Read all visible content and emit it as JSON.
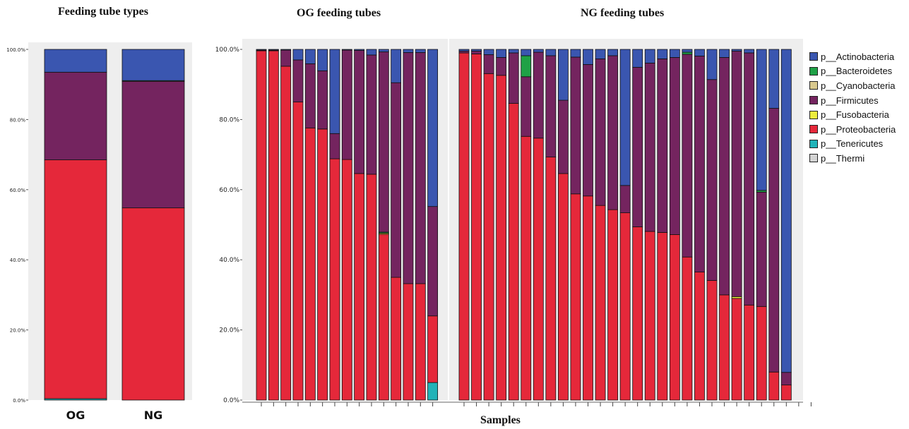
{
  "chart_data": [
    {
      "type": "bar",
      "stacked": true,
      "title": "Feeding tube types",
      "categories": [
        "OG",
        "NG"
      ],
      "ylim": [
        0,
        100
      ],
      "ytick_labels": [
        "0.0%",
        "20.0%",
        "40.0%",
        "60.0%",
        "80.0%",
        "100.0%"
      ],
      "series": [
        {
          "name": "p__Tenericutes",
          "values": [
            0.4,
            0
          ]
        },
        {
          "name": "p__Proteobacteria",
          "values": [
            68.1,
            54.8
          ]
        },
        {
          "name": "p__Firmicutes",
          "values": [
            25.0,
            36.1
          ]
        },
        {
          "name": "p__Bacteroidetes",
          "values": [
            0,
            0.2
          ]
        },
        {
          "name": "p__Actinobacteria",
          "values": [
            6.5,
            8.9
          ]
        }
      ]
    },
    {
      "type": "bar",
      "stacked": true,
      "title": "OG feeding tubes",
      "sample_count": 15,
      "ylim": [
        0,
        100
      ],
      "ytick_labels": [
        "0.0%",
        "20.0%",
        "40.0%",
        "60.0%",
        "80.0%",
        "100.0%"
      ],
      "series": [
        {
          "name": "p__Tenericutes",
          "values": [
            0,
            0,
            0,
            0,
            0,
            0,
            0,
            0,
            0,
            0,
            0,
            0,
            0,
            0,
            5
          ]
        },
        {
          "name": "p__Proteobacteria",
          "values": [
            99.6,
            99.6,
            95.2,
            85.0,
            77.6,
            77.3,
            68.8,
            68.6,
            64.6,
            64.4,
            47.3,
            35.0,
            33.2,
            33.2,
            19.0
          ]
        },
        {
          "name": "p__Fusobacteria",
          "values": [
            0,
            0,
            0,
            0,
            0,
            0,
            0,
            0,
            0,
            0,
            0.3,
            0,
            0,
            0,
            0
          ]
        },
        {
          "name": "p__Bacteroidetes",
          "values": [
            0,
            0,
            0,
            0,
            0,
            0,
            0,
            0,
            0,
            0,
            0.3,
            0,
            0,
            0,
            0
          ]
        },
        {
          "name": "p__Firmicutes",
          "values": [
            0.2,
            0.2,
            4.6,
            12.0,
            18.3,
            16.6,
            7.2,
            31.2,
            35.1,
            34.0,
            51.4,
            55.5,
            65.9,
            65.9,
            31.2
          ]
        },
        {
          "name": "p__Actinobacteria",
          "values": [
            0.2,
            0.2,
            0.2,
            3.0,
            4.1,
            6.1,
            24.0,
            0.2,
            0.3,
            1.6,
            0.7,
            9.5,
            0.9,
            0.9,
            44.8
          ]
        }
      ]
    },
    {
      "type": "bar",
      "stacked": true,
      "title": "NG feeding tubes",
      "sample_count": 29,
      "xlabel": "Samples",
      "ylim": [
        0,
        100
      ],
      "series": [
        {
          "name": "p__Proteobacteria",
          "values": [
            99.0,
            98.7,
            93.1,
            92.6,
            84.6,
            75.2,
            74.7,
            69.3,
            64.6,
            58.8,
            58.2,
            55.5,
            54.3,
            53.4,
            49.4,
            48.1,
            47.8,
            47.2,
            40.8,
            36.5,
            34.1,
            30.0,
            29.0,
            27.1,
            26.7,
            8.0,
            4.3,
            0,
            0
          ]
        },
        {
          "name": "p__Fusobacteria",
          "values": [
            0,
            0,
            0,
            0,
            0,
            0,
            0,
            0,
            0,
            0,
            0,
            0,
            0,
            0,
            0,
            0,
            0,
            0,
            0,
            0,
            0,
            0,
            0.5,
            0,
            0,
            0,
            0,
            0,
            0
          ]
        },
        {
          "name": "p__Firmicutes",
          "values": [
            0.5,
            0.8,
            5.4,
            5.1,
            14.4,
            17.0,
            24.5,
            28.9,
            20.9,
            39.0,
            37.5,
            41.8,
            43.9,
            7.8,
            45.5,
            48.0,
            49.5,
            50.5,
            57.8,
            61.6,
            57.3,
            67.7,
            70.0,
            71.9,
            32.6,
            75.2,
            3.6,
            0,
            0
          ]
        },
        {
          "name": "p__Bacteroidetes",
          "values": [
            0,
            0,
            0,
            0,
            0,
            6.0,
            0,
            0,
            0,
            0,
            0,
            0,
            0,
            0,
            0,
            0,
            0,
            0,
            0.6,
            0,
            0,
            0,
            0,
            0,
            0.5,
            0,
            0,
            0,
            0
          ]
        },
        {
          "name": "p__Actinobacteria",
          "values": [
            0.5,
            0.5,
            1.5,
            2.3,
            1.0,
            1.8,
            0.8,
            1.8,
            14.5,
            2.2,
            4.3,
            2.7,
            1.8,
            38.8,
            5.1,
            3.9,
            2.7,
            2.3,
            0.8,
            1.9,
            8.6,
            2.3,
            0.5,
            1.0,
            40.2,
            16.8,
            92.1,
            0,
            0
          ]
        }
      ]
    }
  ],
  "legend": {
    "items": [
      {
        "label": "p__Actinobacteria",
        "color": "#3a56b0"
      },
      {
        "label": "p__Bacteroidetes",
        "color": "#1fa146"
      },
      {
        "label": "p__Cyanobacteria",
        "color": "#d9c98e"
      },
      {
        "label": "p__Firmicutes",
        "color": "#74245f"
      },
      {
        "label": "p__Fusobacteria",
        "color": "#ecec3c"
      },
      {
        "label": "p__Proteobacteria",
        "color": "#e5283a"
      },
      {
        "label": "p__Tenericutes",
        "color": "#21b3b8"
      },
      {
        "label": "p__Thermi",
        "color": "#d3d3d3"
      }
    ]
  },
  "colors": {
    "p__Actinobacteria": "#3a56b0",
    "p__Bacteroidetes": "#1fa146",
    "p__Cyanobacteria": "#d9c98e",
    "p__Firmicutes": "#74245f",
    "p__Fusobacteria": "#ecec3c",
    "p__Proteobacteria": "#e5283a",
    "p__Tenericutes": "#21b3b8",
    "p__Thermi": "#d3d3d3",
    "plot_background": "#eeeeee"
  }
}
